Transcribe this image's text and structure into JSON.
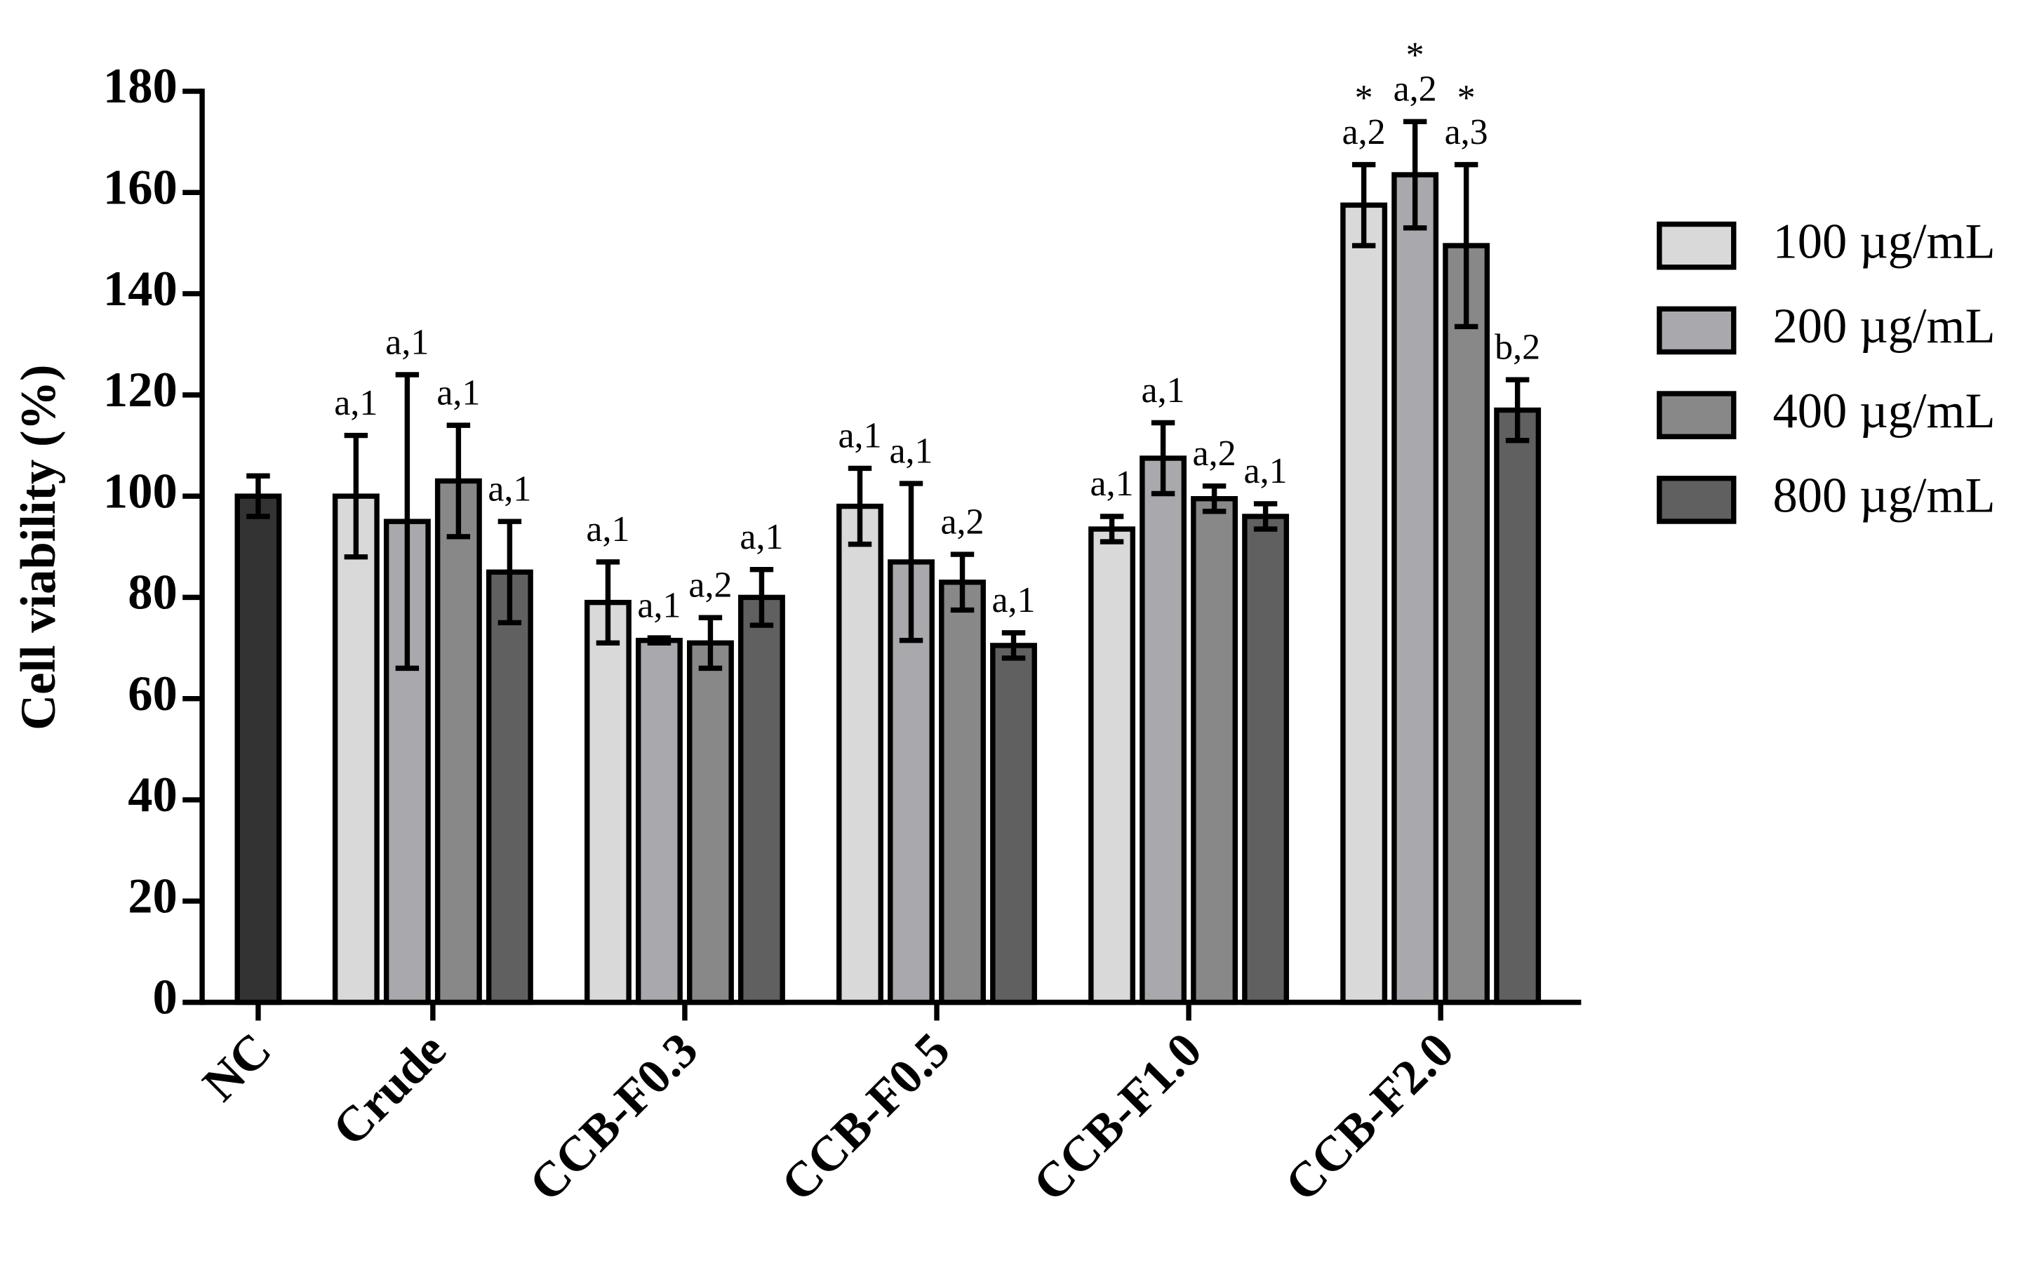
{
  "chart_data": {
    "type": "bar",
    "y_label": "Cell viability (%)",
    "categories": [
      "NC",
      "Crude",
      "CCB-F0.3",
      "CCB-F0.5",
      "CCB-F1.0",
      "CCB-F2.0"
    ],
    "control": {
      "color": "#333333",
      "values": [
        100,
        null,
        null,
        null,
        null,
        null
      ],
      "errors": [
        4,
        null,
        null,
        null,
        null,
        null
      ]
    },
    "series": [
      {
        "name": "100 µg/mL",
        "color": "#d9d9d9",
        "values": [
          null,
          100,
          79,
          98,
          93.5,
          157.5
        ],
        "errors": [
          null,
          12,
          8,
          7.5,
          2.5,
          8
        ],
        "annotations": [
          null,
          "a,1",
          "a,1",
          "a,1",
          "a,1",
          "a,2"
        ],
        "stars": [
          null,
          null,
          null,
          null,
          null,
          "*"
        ]
      },
      {
        "name": "200 µg/mL",
        "color": "#a9a9ad",
        "values": [
          null,
          95,
          71.5,
          87,
          107.5,
          163.5
        ],
        "errors": [
          null,
          29,
          0.5,
          15.5,
          7,
          10.5
        ],
        "annotations": [
          null,
          "a,1",
          "a,1",
          "a,1",
          "a,1",
          "a,2"
        ],
        "stars": [
          null,
          null,
          null,
          null,
          null,
          "*"
        ]
      },
      {
        "name": "400 µg/mL",
        "color": "#888888",
        "values": [
          null,
          103,
          71,
          83,
          99.5,
          149.5
        ],
        "errors": [
          null,
          11,
          5,
          5.5,
          2.5,
          16
        ],
        "annotations": [
          null,
          "a,1",
          "a,2",
          "a,2",
          "a,2",
          "a,3"
        ],
        "stars": [
          null,
          null,
          null,
          null,
          null,
          "*"
        ]
      },
      {
        "name": "800 µg/mL",
        "color": "#606060",
        "values": [
          null,
          85,
          80,
          70.5,
          96,
          117
        ],
        "errors": [
          null,
          10,
          5.5,
          2.5,
          2.5,
          6
        ],
        "annotations": [
          null,
          "a,1",
          "a,1",
          "a,1",
          "a,1",
          "b,2"
        ],
        "stars": [
          null,
          null,
          null,
          null,
          null,
          null
        ]
      }
    ],
    "ylim": [
      0,
      180
    ],
    "yticks": [
      0,
      20,
      40,
      60,
      80,
      100,
      120,
      140,
      160,
      180
    ]
  }
}
